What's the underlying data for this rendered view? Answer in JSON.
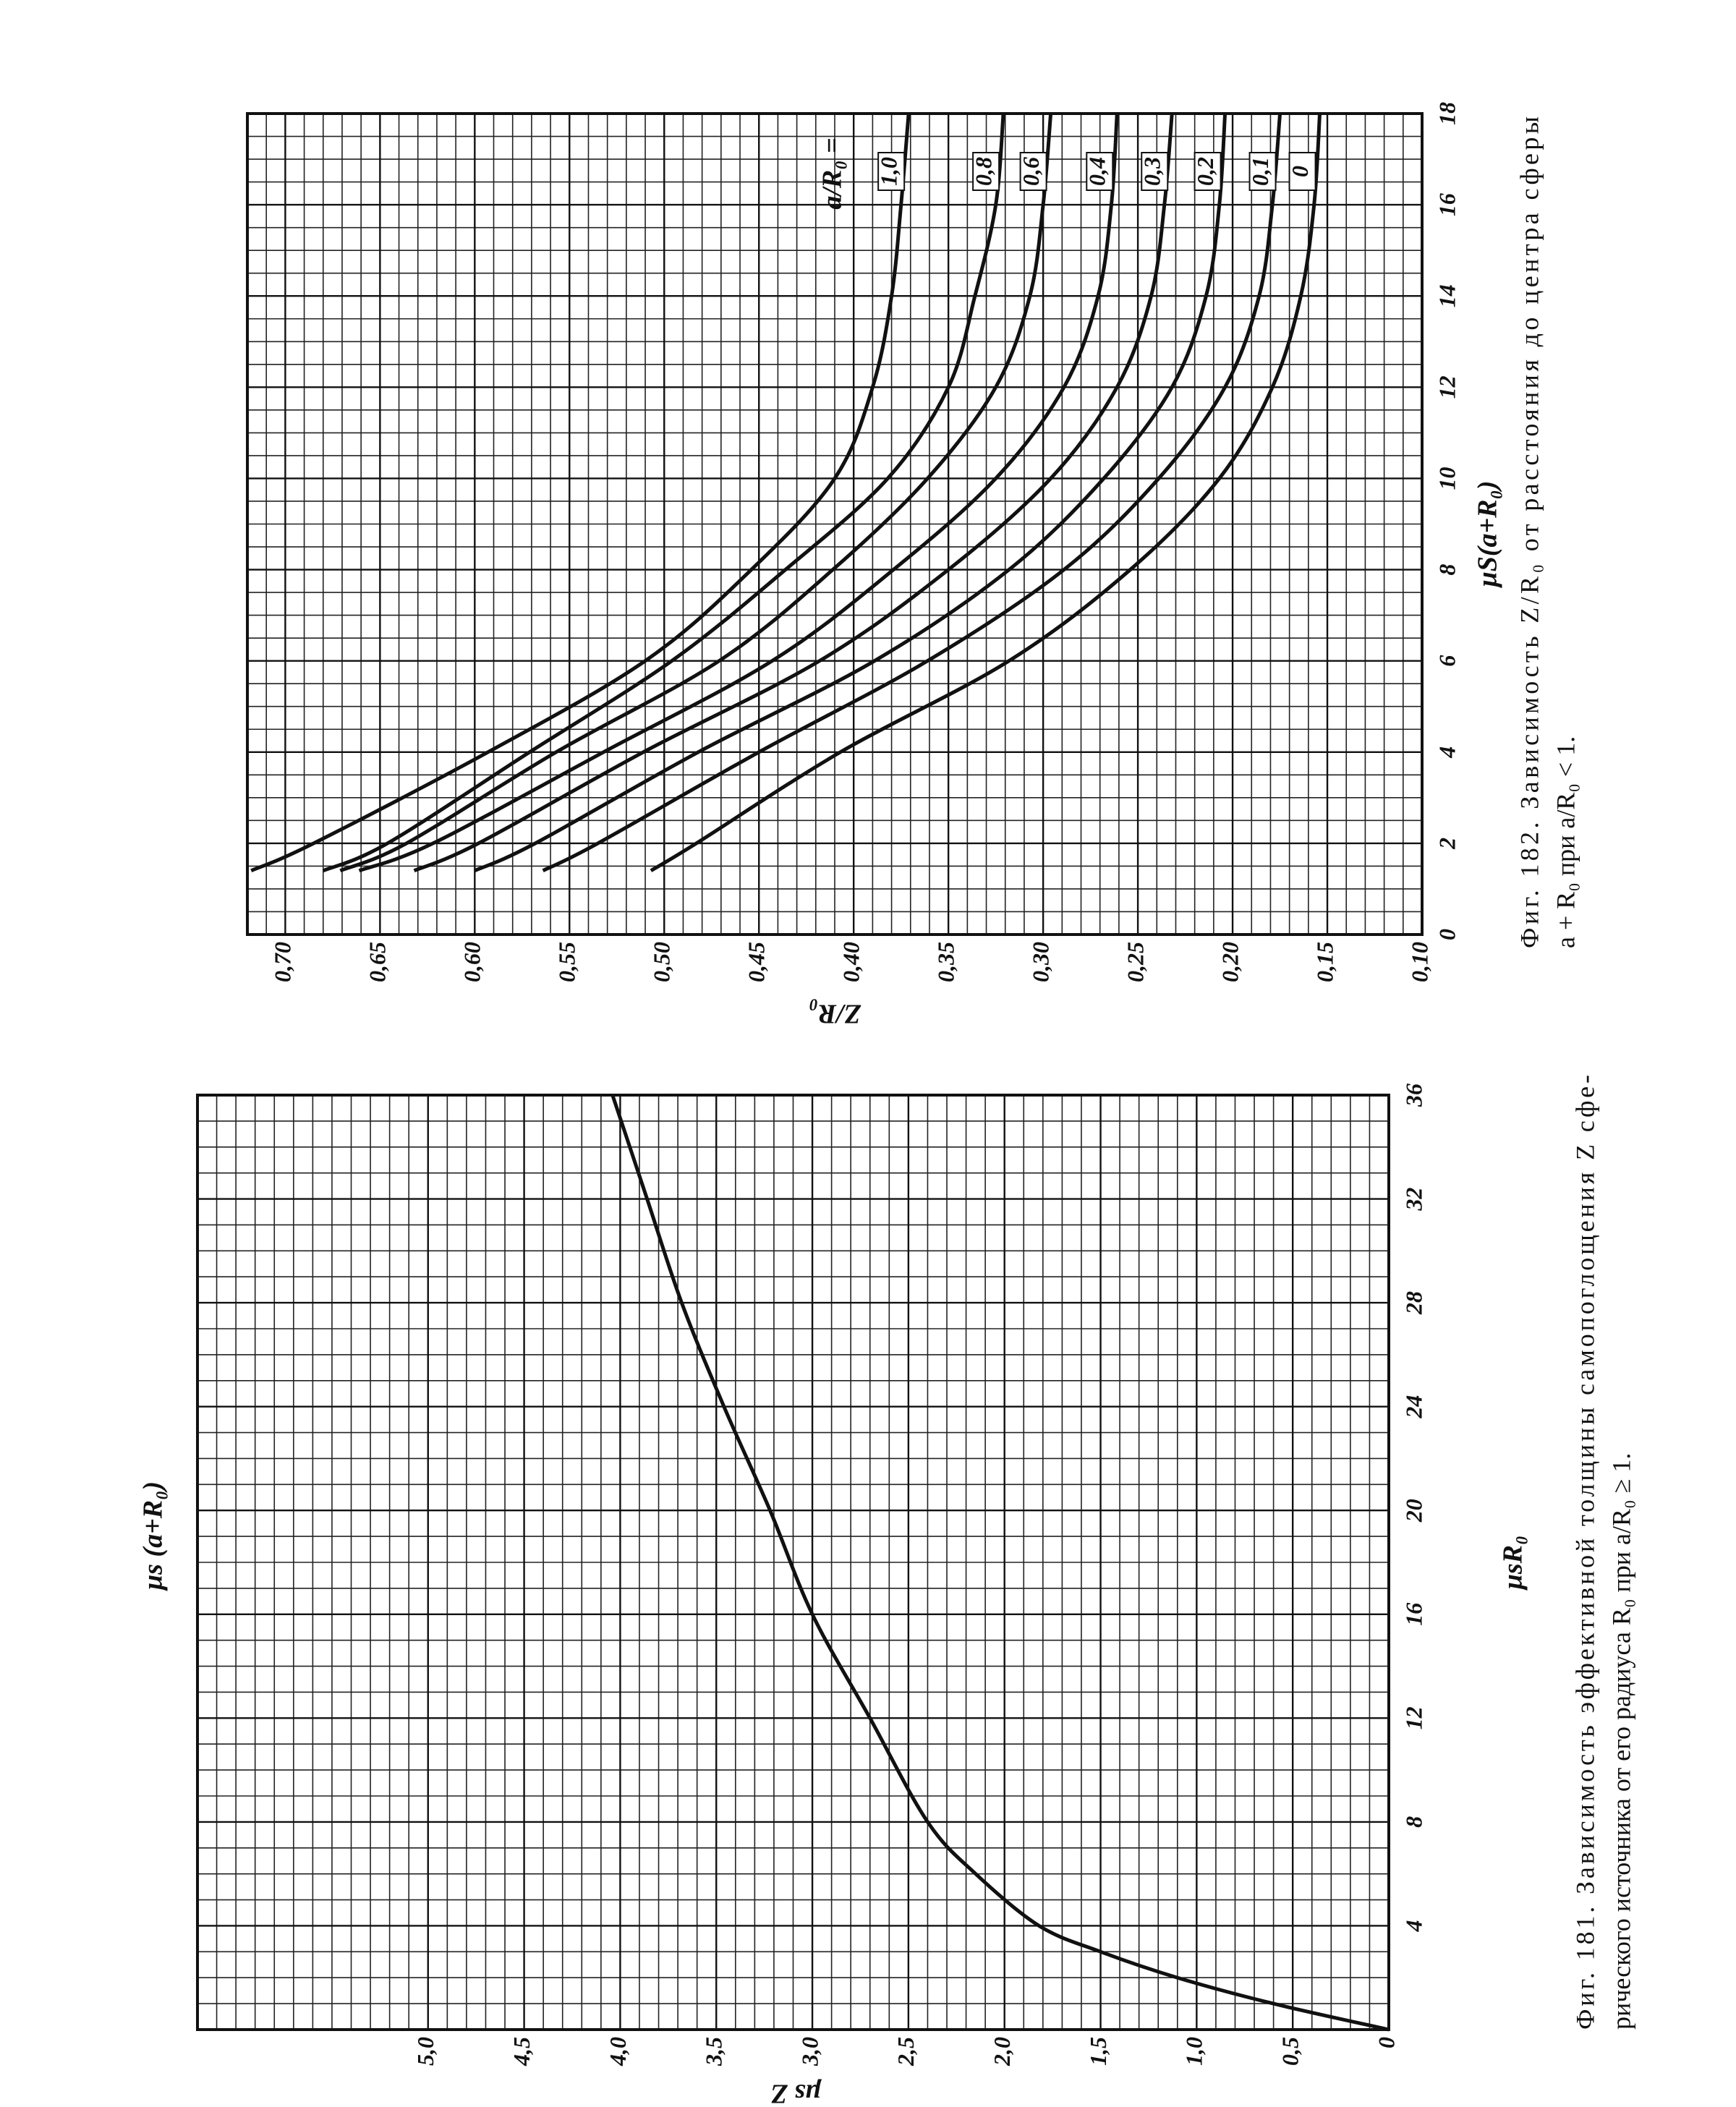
{
  "chart_data": [
    {
      "type": "line",
      "annotation": "μs (a+R₀)",
      "x_label": "μsR₀",
      "y_label": "μs Z",
      "x": [
        0,
        1,
        2,
        3,
        4,
        6,
        8,
        12,
        16,
        20,
        24,
        28,
        32,
        36
      ],
      "values": [
        0,
        0.6,
        1.1,
        1.5,
        1.82,
        2.15,
        2.4,
        2.7,
        3.0,
        3.22,
        3.46,
        3.68,
        3.86,
        4.04
      ],
      "color": "#111111",
      "xlim": [
        0,
        36
      ],
      "xticks": [
        4,
        8,
        12,
        16,
        20,
        24,
        28,
        32,
        36
      ],
      "ylim": [
        0,
        6.2
      ],
      "yticks": [
        0,
        {
          "value": 0.5,
          "label": "0,5"
        },
        {
          "value": 1.0,
          "label": "1,0"
        },
        {
          "value": 1.5,
          "label": "1,5"
        },
        {
          "value": 2.0,
          "label": "2,0"
        },
        {
          "value": 2.5,
          "label": "2,5"
        },
        {
          "value": 3.0,
          "label": "3,0"
        },
        {
          "value": 3.5,
          "label": "3,5"
        },
        {
          "value": 4.0,
          "label": "4,0"
        },
        {
          "value": 4.5,
          "label": "4,5"
        },
        {
          "value": 5.0,
          "label": "5,0"
        }
      ],
      "grid": true,
      "caption": [
        "Фиг. 181. Зависимость эффективной толщины самопоглощения Z сфе-",
        "рического источника от его радиуса R₀ при a/R₀ ≥ 1."
      ]
    },
    {
      "type": "line",
      "x_label": "μS(a+R₀)",
      "y_label": "Z/R₀",
      "legend_title": "a/R₀ =",
      "x": [
        1.4,
        2,
        4,
        6,
        8,
        10,
        12,
        14,
        16,
        18
      ],
      "series": [
        {
          "name": "1,0",
          "color": "#111111",
          "values": [
            0.718,
            0.685,
            0.593,
            0.51,
            0.454,
            0.41,
            0.39,
            0.38,
            0.375,
            0.371
          ]
        },
        {
          "name": "0,8",
          "color": "#111111",
          "values": [
            0.68,
            0.646,
            0.571,
            0.496,
            0.436,
            0.382,
            0.35,
            0.336,
            0.325,
            0.321
          ]
        },
        {
          "name": "0,6",
          "color": "#111111",
          "values": [
            0.671,
            0.636,
            0.557,
            0.471,
            0.411,
            0.361,
            0.325,
            0.307,
            0.3,
            0.296
          ]
        },
        {
          "name": "0,4",
          "color": "#111111",
          "values": [
            0.661,
            0.622,
            0.532,
            0.443,
            0.379,
            0.325,
            0.289,
            0.271,
            0.264,
            0.261
          ]
        },
        {
          "name": "0,3",
          "color": "#111111",
          "values": [
            0.632,
            0.598,
            0.511,
            0.418,
            0.35,
            0.296,
            0.261,
            0.243,
            0.236,
            0.232
          ]
        },
        {
          "name": "0,2",
          "color": "#111111",
          "values": [
            0.6,
            0.568,
            0.482,
            0.389,
            0.318,
            0.268,
            0.232,
            0.214,
            0.207,
            0.204
          ]
        },
        {
          "name": "0,1",
          "color": "#111111",
          "values": [
            0.564,
            0.535,
            0.45,
            0.361,
            0.289,
            0.239,
            0.204,
            0.186,
            0.179,
            0.175
          ]
        },
        {
          "name": "0",
          "color": "#111111",
          "values": [
            0.507,
            0.483,
            0.407,
            0.318,
            0.254,
            0.207,
            0.179,
            0.164,
            0.157,
            0.154
          ]
        }
      ],
      "xlim": [
        0,
        18
      ],
      "xticks": [
        0,
        2,
        4,
        6,
        8,
        10,
        12,
        14,
        16,
        18
      ],
      "ylim": [
        0.1,
        0.72
      ],
      "yticks": [
        {
          "value": 0.1,
          "label": "0,10"
        },
        {
          "value": 0.15,
          "label": "0,15"
        },
        {
          "value": 0.2,
          "label": "0,20"
        },
        {
          "value": 0.25,
          "label": "0,25"
        },
        {
          "value": 0.3,
          "label": "0,30"
        },
        {
          "value": 0.35,
          "label": "0,35"
        },
        {
          "value": 0.4,
          "label": "0,40"
        },
        {
          "value": 0.45,
          "label": "0,45"
        },
        {
          "value": 0.5,
          "label": "0,50"
        },
        {
          "value": 0.55,
          "label": "0,55"
        },
        {
          "value": 0.6,
          "label": "0,60"
        },
        {
          "value": 0.65,
          "label": "0,65"
        },
        {
          "value": 0.7,
          "label": "0,70"
        }
      ],
      "grid": true,
      "caption": [
        "Фиг. 182. Зависимость Z/R₀ от расстояния до центра сферы",
        "a + R₀ при a/R₀ < 1."
      ]
    }
  ]
}
